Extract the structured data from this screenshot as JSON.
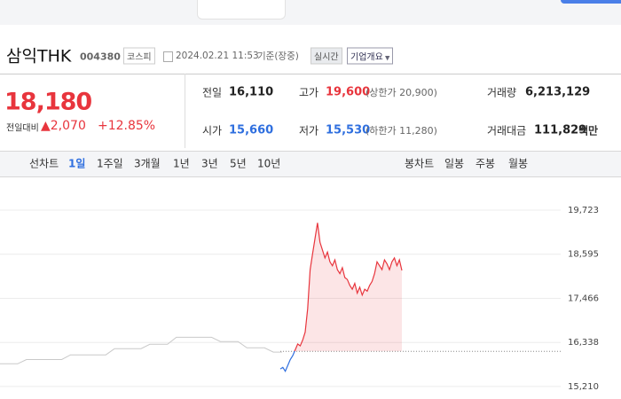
{
  "header": {
    "name": "삼익THK",
    "code": "004380",
    "market": "코스피",
    "timestamp": "2024.02.21 11:53",
    "status": "기준(장중)",
    "realtime": "실시간",
    "company_info": "기업개요"
  },
  "quote": {
    "price": "18,180",
    "change_label": "전일대비",
    "change": "▲2,070",
    "change_pct": "+12.85%"
  },
  "stats": [
    [
      {
        "label": "전일",
        "value": "16,110"
      },
      {
        "label": "고가",
        "value": "19,600",
        "sub": "(상한가 20,900)"
      },
      {
        "label": "거래량",
        "value": "6,213,129"
      }
    ],
    [
      {
        "label": "시가",
        "value": "15,660"
      },
      {
        "label": "저가",
        "value": "15,530",
        "sub": "(하한가 11,280)"
      },
      {
        "label": "거래대금",
        "value": "111,829",
        "unit": "백만"
      }
    ]
  ],
  "tabs": {
    "line_label": "선차트",
    "periods": [
      "1일",
      "1주일",
      "3개월",
      "1년",
      "3년",
      "5년",
      "10년"
    ],
    "candle_label": "봉차트",
    "candles": [
      "일봉",
      "주봉",
      "월봉"
    ]
  },
  "chart_data": {
    "type": "line",
    "ylim": [
      14890,
      20450
    ],
    "yticks": [
      {
        "value": 19723,
        "label": "19,723"
      },
      {
        "value": 18595,
        "label": "18,595"
      },
      {
        "value": 17466,
        "label": "17,466"
      },
      {
        "value": 16338,
        "label": "16,338"
      },
      {
        "value": 15210,
        "label": "15,210"
      }
    ],
    "grid": true,
    "baseline": 16110,
    "series": [
      {
        "color": "#c9c9c9",
        "values": [
          15790,
          15790,
          15790,
          15900,
          15900,
          15900,
          15900,
          15900,
          16020,
          16020,
          16020,
          16020,
          16020,
          16180,
          16180,
          16180,
          16180,
          16290,
          16290,
          16290,
          16470,
          16470,
          16470,
          16470,
          16470,
          16360,
          16360,
          16360,
          16200,
          16200,
          16200,
          16090,
          16090
        ]
      },
      {
        "color": "#e8353d",
        "color_below": "#2f6fdf",
        "values": [
          15660,
          15700,
          15600,
          15750,
          15900,
          16000,
          16150,
          16300,
          16250,
          16400,
          16600,
          17200,
          18200,
          18600,
          19000,
          19400,
          18900,
          18700,
          18500,
          18650,
          18400,
          18300,
          18450,
          18200,
          18100,
          18250,
          18000,
          17950,
          17800,
          17700,
          17850,
          17600,
          17750,
          17550,
          17700,
          17650,
          17800,
          17900,
          18100,
          18400,
          18300,
          18200,
          18450,
          18350,
          18200,
          18400,
          18500,
          18300,
          18450,
          18180
        ]
      }
    ]
  }
}
